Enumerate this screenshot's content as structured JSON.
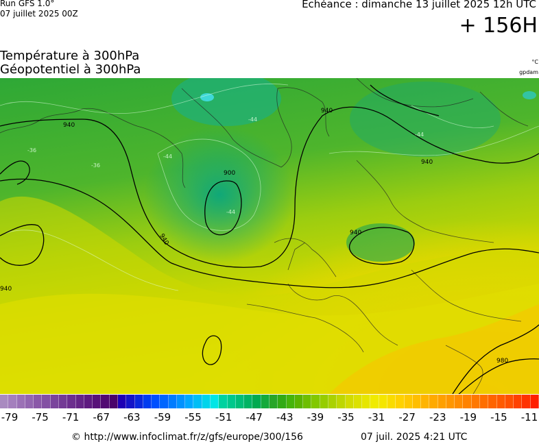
{
  "header": {
    "run": "Run GFS 1.0°",
    "run_date": "07 juillet 2025 00Z",
    "echeance": "Echéance : dimanche 13 juillet 2025 12h UTC",
    "forecast_hour": "+ 156H"
  },
  "params": {
    "temperature": "Température à 300hPa",
    "geopotential": "Géopotentiel à 300hPa",
    "temp_unit": "°C",
    "geo_unit": "gpdam"
  },
  "map": {
    "geopotential_labels": [
      "940",
      "900",
      "940",
      "940",
      "940",
      "940",
      "980",
      "940"
    ],
    "isotherm_labels": [
      "-44",
      "-44",
      "-44",
      "-36",
      "-44",
      "-36"
    ]
  },
  "colorbar": {
    "colors": [
      "#a98bc0",
      "#a47fbd",
      "#9b71b6",
      "#9366b0",
      "#8a58a8",
      "#8350a3",
      "#7a449c",
      "#733a95",
      "#6c2e8e",
      "#652487",
      "#5e1a80",
      "#581279",
      "#520a72",
      "#4a036a",
      "#1e00b4",
      "#1414c8",
      "#0a28dc",
      "#003cf0",
      "#0050ff",
      "#0066ff",
      "#007cff",
      "#0092ff",
      "#00a8ff",
      "#00bef5",
      "#00d4eb",
      "#00e6e6",
      "#00d2a0",
      "#00c88c",
      "#00be78",
      "#00b464",
      "#00aa50",
      "#14aa3c",
      "#28a528",
      "#32aa14",
      "#46b40a",
      "#5ab400",
      "#6ebe00",
      "#82c800",
      "#96cd00",
      "#aad200",
      "#bed700",
      "#d2dc00",
      "#dce100",
      "#e6e600",
      "#f0eb00",
      "#f5e600",
      "#fadc00",
      "#ffd200",
      "#ffc800",
      "#ffbe00",
      "#ffb400",
      "#ffaa00",
      "#ffa000",
      "#ff9600",
      "#ff8c00",
      "#ff8200",
      "#ff7800",
      "#ff6e00",
      "#ff6400",
      "#ff5a00",
      "#ff5000",
      "#ff4100",
      "#ff3200",
      "#ff2000"
    ],
    "labels": [
      "-79",
      "-75",
      "-71",
      "-67",
      "-63",
      "-59",
      "-55",
      "-51",
      "-47",
      "-43",
      "-39",
      "-35",
      "-31",
      "-27",
      "-23",
      "-19",
      "-15",
      "-11"
    ]
  },
  "footer": {
    "url": "© http://www.infoclimat.fr/z/gfs/europe/300/156",
    "date": "07 juil. 2025  4:21 UTC"
  }
}
